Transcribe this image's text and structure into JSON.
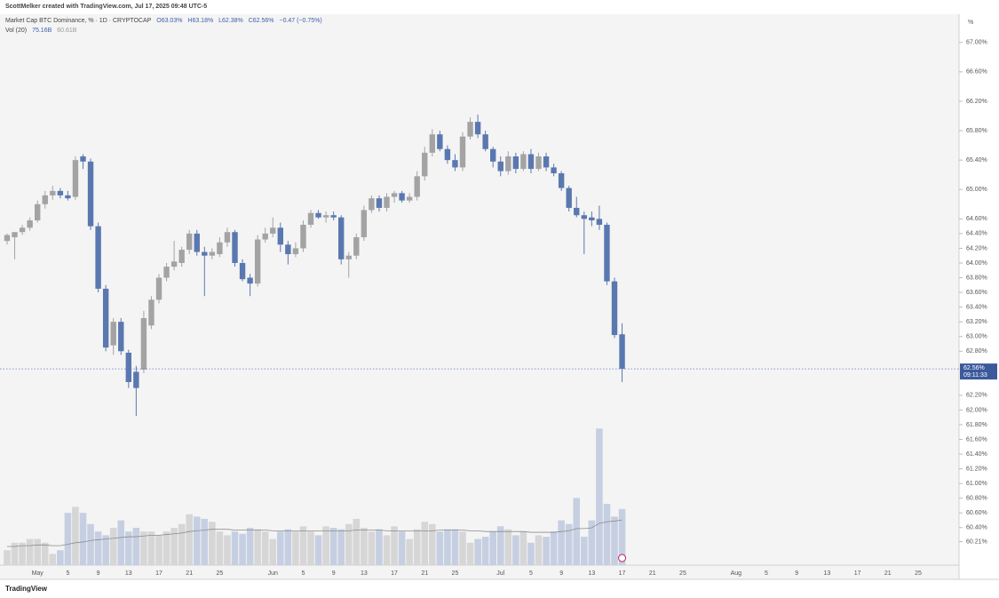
{
  "header": {
    "creator": "ScottMelker created with TradingView.com, Jul 17, 2025 09:48 UTC-5",
    "symbol": "Market Cap BTC Dominance, % · 1D · CRYPTOCAP",
    "ohlc": [
      "O63.03%",
      "H63.18%",
      "L62.38%",
      "C62.56%"
    ],
    "change": "−0.47 (−0.75%)",
    "volume_label": "Vol (20)",
    "volume_value": "75.16B",
    "volume_ma": "60.61B"
  },
  "chart_data": {
    "type": "candlestick",
    "y_unit": "%",
    "last_price_label": "62.56%",
    "countdown": "09:11:33",
    "up_color": "#a3a3a3",
    "down_color": "#5a78b0",
    "volume_up_color": "#d6d6d6",
    "volume_down_color": "#c6cfe2",
    "ma_color": "#8c8c8c",
    "ylim": [
      59.89,
      67.36
    ],
    "volume_ylim": [
      0,
      200
    ],
    "yticks": [
      {
        "value": 67,
        "label": "67.00%"
      },
      {
        "value": 66.6,
        "label": "66.60%"
      },
      {
        "value": 66.2,
        "label": "66.20%"
      },
      {
        "value": 65.8,
        "label": "65.80%"
      },
      {
        "value": 65.4,
        "label": "65.40%"
      },
      {
        "value": 65,
        "label": "65.00%"
      },
      {
        "value": 64.6,
        "label": "64.60%"
      },
      {
        "value": 64.4,
        "label": "64.40%"
      },
      {
        "value": 64.2,
        "label": "64.20%"
      },
      {
        "value": 64,
        "label": "64.00%"
      },
      {
        "value": 63.8,
        "label": "63.80%"
      },
      {
        "value": 63.6,
        "label": "63.60%"
      },
      {
        "value": 63.4,
        "label": "63.40%"
      },
      {
        "value": 63.2,
        "label": "63.20%"
      },
      {
        "value": 63,
        "label": "63.00%"
      },
      {
        "value": 62.8,
        "label": "62.80%"
      },
      {
        "value": 62.2,
        "label": "62.20%"
      },
      {
        "value": 62,
        "label": "62.00%"
      },
      {
        "value": 61.8,
        "label": "61.80%"
      },
      {
        "value": 61.6,
        "label": "61.60%"
      },
      {
        "value": 61.4,
        "label": "61.40%"
      },
      {
        "value": 61.2,
        "label": "61.20%"
      },
      {
        "value": 61,
        "label": "61.00%"
      },
      {
        "value": 60.8,
        "label": "60.80%"
      },
      {
        "value": 60.6,
        "label": "60.60%"
      },
      {
        "value": 60.4,
        "label": "60.40%"
      },
      {
        "value": 60.21,
        "label": "60.21%"
      }
    ],
    "categories": [
      null,
      null,
      null,
      null,
      "May",
      null,
      null,
      null,
      "5",
      null,
      null,
      null,
      "9",
      null,
      null,
      null,
      "13",
      null,
      null,
      null,
      "17",
      null,
      null,
      null,
      "21",
      null,
      null,
      null,
      "25",
      null,
      null,
      null,
      null,
      null,
      null,
      "Jun",
      null,
      null,
      null,
      "5",
      null,
      null,
      null,
      "9",
      null,
      null,
      null,
      "13",
      null,
      null,
      null,
      "17",
      null,
      null,
      null,
      "21",
      null,
      null,
      null,
      "25",
      null,
      null,
      null,
      null,
      null,
      "Jul",
      null,
      null,
      null,
      "5",
      null,
      null,
      null,
      "9",
      null,
      null,
      null,
      "13",
      null,
      null,
      null,
      "17",
      null,
      null,
      null,
      "21",
      null,
      null,
      null,
      "25",
      null,
      null,
      null,
      null,
      null,
      null,
      "Aug",
      null,
      null,
      null,
      "5",
      null,
      null,
      null,
      "9",
      null,
      null,
      null,
      "13",
      null,
      null,
      null,
      "17",
      null,
      null,
      null,
      "21",
      null,
      null,
      null,
      "25"
    ],
    "open": [
      64.3,
      64.35,
      64.42,
      64.48,
      64.58,
      64.8,
      64.92,
      64.98,
      64.92,
      64.9,
      65.45,
      65.38,
      64.5,
      63.65,
      62.88,
      63.2,
      62.78,
      62.52,
      62.55,
      63.15,
      63.5,
      63.8,
      63.95,
      64.0,
      64.18,
      64.4,
      64.15,
      64.1,
      64.12,
      64.28,
      64.42,
      64.0,
      63.8,
      63.72,
      64.32,
      64.4,
      64.48,
      64.25,
      64.12,
      64.2,
      64.52,
      64.68,
      64.62,
      64.65,
      64.62,
      64.05,
      64.1,
      64.35,
      64.72,
      64.88,
      64.75,
      64.9,
      64.95,
      64.85,
      64.9,
      65.18,
      65.5,
      65.75,
      65.55,
      65.4,
      65.3,
      65.72,
      65.92,
      65.75,
      65.55,
      65.38,
      65.25,
      65.45,
      65.28,
      65.48,
      65.28,
      65.45,
      65.3,
      65.22,
      65.02,
      64.75,
      64.65,
      64.62,
      64.6,
      64.52,
      63.75,
      63.03,
      null,
      null,
      null,
      null,
      null,
      null,
      null,
      null,
      null,
      null,
      null,
      null,
      null,
      null,
      null,
      null,
      null,
      null,
      null,
      null,
      null,
      null,
      null,
      null,
      null,
      null,
      null,
      null,
      null,
      null,
      null,
      null,
      null,
      null,
      null,
      null,
      null,
      null,
      null
    ],
    "high": [
      64.4,
      64.42,
      64.52,
      64.62,
      64.85,
      64.98,
      65.05,
      65.02,
      64.98,
      65.45,
      65.48,
      65.42,
      64.55,
      63.7,
      63.25,
      63.25,
      62.82,
      62.6,
      63.35,
      63.55,
      63.85,
      64.0,
      64.3,
      64.22,
      64.45,
      64.45,
      64.22,
      64.2,
      64.35,
      64.48,
      64.45,
      64.05,
      63.85,
      64.38,
      64.48,
      64.62,
      64.55,
      64.3,
      64.28,
      64.58,
      64.72,
      64.72,
      64.7,
      64.7,
      64.65,
      64.15,
      64.4,
      64.78,
      64.92,
      64.92,
      64.95,
      64.98,
      64.98,
      64.95,
      65.25,
      65.58,
      65.82,
      65.8,
      65.6,
      65.48,
      65.78,
      65.98,
      66.02,
      65.8,
      65.58,
      65.45,
      65.52,
      65.5,
      65.52,
      65.55,
      65.5,
      65.5,
      65.35,
      65.25,
      65.05,
      64.9,
      64.7,
      64.7,
      64.78,
      64.55,
      63.8,
      63.18,
      null,
      null,
      null,
      null,
      null,
      null,
      null,
      null,
      null,
      null,
      null,
      null,
      null,
      null,
      null,
      null,
      null,
      null,
      null,
      null,
      null,
      null,
      null,
      null,
      null,
      null,
      null,
      null,
      null,
      null,
      null,
      null,
      null,
      null,
      null,
      null,
      null,
      null,
      null
    ],
    "low": [
      64.25,
      64.05,
      64.38,
      64.44,
      64.55,
      64.74,
      64.86,
      64.88,
      64.85,
      64.86,
      65.28,
      64.45,
      63.6,
      62.8,
      62.75,
      62.75,
      62.3,
      61.92,
      62.5,
      63.1,
      63.45,
      63.75,
      63.9,
      63.95,
      64.12,
      64.1,
      63.55,
      64.05,
      64.08,
      64.22,
      63.95,
      63.75,
      63.55,
      63.68,
      64.28,
      64.35,
      64.15,
      63.98,
      64.08,
      64.15,
      64.48,
      64.6,
      64.55,
      64.58,
      63.98,
      63.8,
      64.05,
      64.3,
      64.68,
      64.7,
      64.7,
      64.82,
      64.82,
      64.82,
      64.85,
      65.12,
      65.45,
      65.52,
      65.35,
      65.25,
      65.25,
      65.68,
      65.7,
      65.52,
      65.3,
      65.18,
      65.2,
      65.22,
      65.25,
      65.22,
      65.25,
      65.25,
      65.18,
      64.98,
      64.7,
      64.62,
      64.12,
      64.5,
      64.45,
      63.7,
      62.98,
      62.38,
      null,
      null,
      null,
      null,
      null,
      null,
      null,
      null,
      null,
      null,
      null,
      null,
      null,
      null,
      null,
      null,
      null,
      null,
      null,
      null,
      null,
      null,
      null,
      null,
      null,
      null,
      null,
      null,
      null,
      null,
      null,
      null,
      null,
      null,
      null,
      null,
      null,
      null,
      null
    ],
    "close": [
      64.38,
      64.42,
      64.48,
      64.58,
      64.8,
      64.92,
      64.98,
      64.92,
      64.88,
      65.4,
      65.38,
      64.5,
      63.65,
      62.85,
      63.2,
      62.8,
      62.38,
      62.3,
      63.25,
      63.5,
      63.8,
      63.95,
      64.02,
      64.18,
      64.4,
      64.15,
      64.1,
      64.15,
      64.28,
      64.42,
      64.0,
      63.78,
      63.72,
      64.32,
      64.4,
      64.48,
      64.25,
      64.12,
      64.2,
      64.52,
      64.68,
      64.62,
      64.65,
      64.62,
      64.05,
      64.1,
      64.35,
      64.72,
      64.88,
      64.75,
      64.9,
      64.95,
      64.85,
      64.9,
      65.18,
      65.5,
      65.75,
      65.55,
      65.4,
      65.3,
      65.72,
      65.92,
      65.75,
      65.55,
      65.38,
      65.25,
      65.45,
      65.28,
      65.48,
      65.28,
      65.45,
      65.3,
      65.22,
      65.02,
      64.75,
      64.65,
      64.6,
      64.58,
      64.52,
      63.75,
      63.02,
      62.56,
      null,
      null,
      null,
      null,
      null,
      null,
      null,
      null,
      null,
      null,
      null,
      null,
      null,
      null,
      null,
      null,
      null,
      null,
      null,
      null,
      null,
      null,
      null,
      null,
      null,
      null,
      null,
      null,
      null,
      null,
      null,
      null,
      null,
      null,
      null,
      null,
      null,
      null,
      null
    ],
    "volume": [
      20,
      30,
      30,
      35,
      35,
      30,
      15,
      20,
      70,
      78,
      70,
      55,
      45,
      40,
      50,
      60,
      45,
      50,
      45,
      45,
      40,
      45,
      50,
      55,
      68,
      65,
      62,
      58,
      45,
      40,
      45,
      42,
      50,
      48,
      45,
      35,
      45,
      48,
      45,
      52,
      45,
      40,
      52,
      50,
      48,
      55,
      62,
      50,
      45,
      48,
      40,
      52,
      45,
      35,
      48,
      58,
      55,
      45,
      48,
      48,
      45,
      30,
      35,
      38,
      45,
      52,
      48,
      40,
      45,
      30,
      40,
      38,
      45,
      60,
      55,
      90,
      38,
      60,
      183,
      82,
      65,
      75.16,
      null,
      null,
      null,
      null,
      null,
      null,
      null,
      null,
      null,
      null,
      null,
      null,
      null,
      null,
      null,
      null,
      null,
      null,
      null,
      null,
      null,
      null,
      null,
      null,
      null,
      null,
      null,
      null,
      null,
      null,
      null,
      null,
      null,
      null,
      null,
      null,
      null,
      null,
      null
    ],
    "volume_ma": [
      25,
      25,
      26,
      26,
      27,
      27,
      26,
      26,
      28,
      30,
      31,
      33,
      34,
      35,
      36,
      37,
      38,
      38,
      39,
      40,
      40,
      41,
      42,
      43,
      45,
      46,
      47,
      48,
      48,
      48,
      47,
      47,
      47,
      47,
      47,
      46,
      46,
      46,
      46,
      46,
      46,
      46,
      46,
      46,
      46,
      46,
      47,
      47,
      47,
      47,
      46,
      46,
      46,
      46,
      46,
      46,
      46,
      47,
      47,
      47,
      47,
      46,
      46,
      45,
      45,
      45,
      45,
      45,
      45,
      44,
      44,
      44,
      44,
      45,
      46,
      49,
      49,
      50,
      56,
      58,
      59,
      60.61,
      null,
      null,
      null,
      null,
      null,
      null,
      null,
      null,
      null,
      null,
      null,
      null,
      null,
      null,
      null,
      null,
      null,
      null,
      null,
      null,
      null,
      null,
      null,
      null,
      null,
      null,
      null,
      null,
      null,
      null,
      null,
      null,
      null,
      null,
      null,
      null,
      null,
      null,
      null
    ]
  },
  "footer": {
    "brand": "TradingView"
  }
}
